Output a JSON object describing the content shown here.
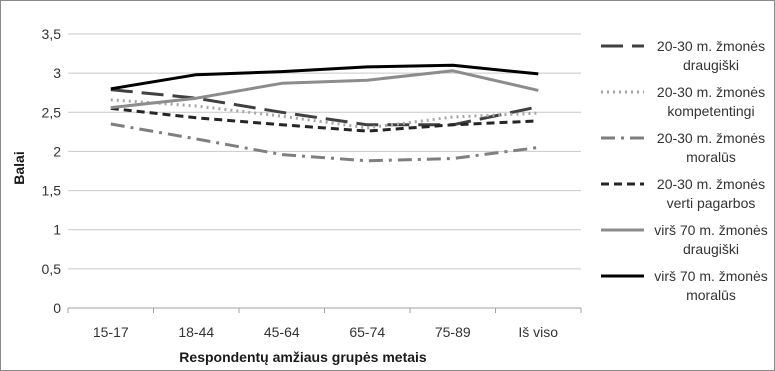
{
  "chart_data": {
    "type": "line",
    "xlabel": "Respondentų amžiaus grupės metais",
    "ylabel": "Balai",
    "categories": [
      "15-17",
      "18-44",
      "45-64",
      "65-74",
      "75-89",
      "Iš viso"
    ],
    "ylim": [
      0,
      3.5
    ],
    "yticks": [
      "0",
      "0,5",
      "1",
      "1,5",
      "2",
      "2,5",
      "3",
      "3,5"
    ],
    "grid": true,
    "legend_position": "right",
    "series": [
      {
        "name": "20-30 m. žmonės draugiški",
        "legend_lines": [
          "20-30 m. žmonės",
          "draugiški"
        ],
        "values": [
          2.79,
          2.68,
          2.5,
          2.34,
          2.34,
          2.57
        ],
        "color": "#404040",
        "style": "long-dash"
      },
      {
        "name": "20-30 m. žmonės kompetentingi",
        "legend_lines": [
          "20-30 m. žmonės",
          "kompetentingi"
        ],
        "values": [
          2.66,
          2.58,
          2.45,
          2.3,
          2.44,
          2.49
        ],
        "color": "#a6a6a6",
        "style": "dotted"
      },
      {
        "name": "20-30 m. žmonės moralūs",
        "legend_lines": [
          "20-30 m. žmonės",
          "moralūs"
        ],
        "values": [
          2.35,
          2.16,
          1.96,
          1.88,
          1.91,
          2.05
        ],
        "color": "#7f7f7f",
        "style": "dash-dot"
      },
      {
        "name": "20-30 m. žmonės verti pagarbos",
        "legend_lines": [
          "20-30 m. žmonės",
          "verti pagarbos"
        ],
        "values": [
          2.55,
          2.43,
          2.34,
          2.26,
          2.34,
          2.39
        ],
        "color": "#262626",
        "style": "short-dash"
      },
      {
        "name": "virš 70 m. žmonės draugiški",
        "legend_lines": [
          "virš 70 m. žmonės",
          "draugiški"
        ],
        "values": [
          2.56,
          2.68,
          2.87,
          2.91,
          3.03,
          2.78
        ],
        "color": "#8c8c8c",
        "style": "solid"
      },
      {
        "name": "virš 70 m. žmonės moralūs",
        "legend_lines": [
          "virš 70 m. žmonės",
          "moralūs"
        ],
        "values": [
          2.8,
          2.98,
          3.02,
          3.08,
          3.1,
          2.99
        ],
        "color": "#000000",
        "style": "solid"
      }
    ]
  }
}
